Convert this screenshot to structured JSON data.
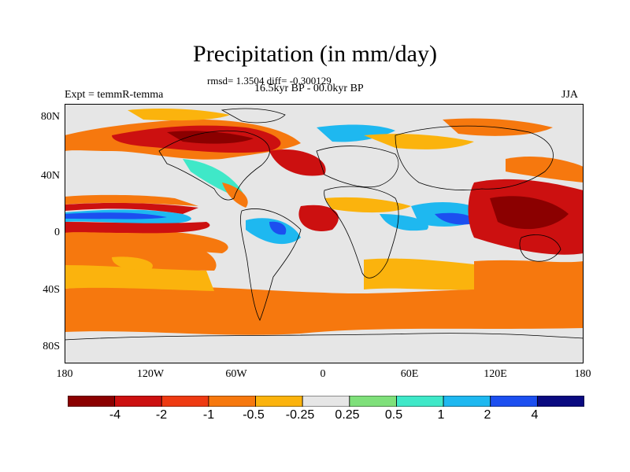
{
  "title": "Precipitation (in mm/day)",
  "stats": "rmsd= 1.3504 diff= -0.300129",
  "period": "16.5kyr BP - 00.0kyr BP",
  "experiment": "Expt = temmR-temma",
  "season": "JJA",
  "lat_labels": [
    "80N",
    "40N",
    "0",
    "40S",
    "80S"
  ],
  "lon_labels": [
    "180",
    "120W",
    "60W",
    "0",
    "60E",
    "120E",
    "180"
  ],
  "colorbar": {
    "labels": [
      "-4",
      "-2",
      "-1",
      "-0.5",
      "-0.25",
      "0.25",
      "0.5",
      "1",
      "2",
      "4"
    ],
    "colors": [
      "#8b0000",
      "#cc1010",
      "#ee3a12",
      "#f6780e",
      "#fbb30d",
      "#e6e6e6",
      "#7fe07a",
      "#3fe8c8",
      "#1eb8f0",
      "#1c4ff0",
      "#0a0a80"
    ]
  },
  "colors": {
    "neutral": "#e6e6e6",
    "land_outline": "#000000"
  }
}
